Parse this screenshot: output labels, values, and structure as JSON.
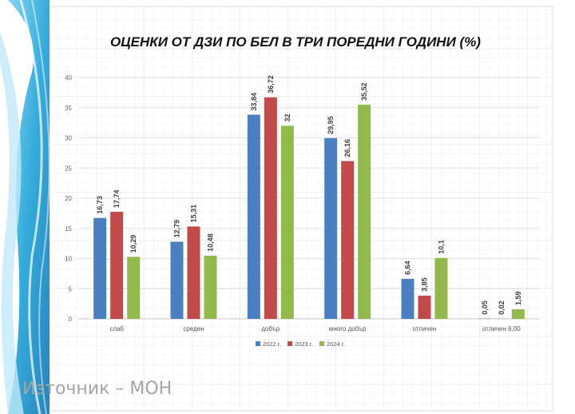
{
  "source_note": "Източник – МОН",
  "colors": {
    "series": [
      "#4a7fc1",
      "#c24a48",
      "#93b84c"
    ],
    "grid_major": "#e0e0e0",
    "grid_minor": "#eeeeee",
    "accent_left": "#2aa7d9"
  },
  "chart_data": {
    "type": "bar",
    "title": "ОЦЕНКИ ОТ ДЗИ ПО БЕЛ В ТРИ ПОРЕДНИ ГОДИНИ (%)",
    "categories": [
      "слаб",
      "среден",
      "добър",
      "много добър",
      "отличен",
      "отличен 6,00"
    ],
    "series": [
      {
        "name": "2022 г.",
        "values": [
          16.73,
          12.79,
          33.84,
          29.95,
          6.64,
          0.05
        ],
        "labels": [
          "16,73",
          "12,79",
          "33,84",
          "29,95",
          "6,64",
          "0,05"
        ]
      },
      {
        "name": "2023 г.",
        "values": [
          17.74,
          15.31,
          36.72,
          26.16,
          3.85,
          0.02
        ],
        "labels": [
          "17,74",
          "15,31",
          "36,72",
          "26,16",
          "3,85",
          "0,02"
        ]
      },
      {
        "name": "2024 г.",
        "values": [
          10.29,
          10.48,
          32,
          35.52,
          10.1,
          1.59
        ],
        "labels": [
          "10,29",
          "10,48",
          "32",
          "35,52",
          "10,1",
          "1,59"
        ]
      }
    ],
    "ylim": [
      0,
      40
    ],
    "yticks": [
      "0",
      "5",
      "10",
      "15",
      "20",
      "25",
      "30",
      "35",
      "40"
    ],
    "legend_position": "bottom",
    "grid": true
  }
}
